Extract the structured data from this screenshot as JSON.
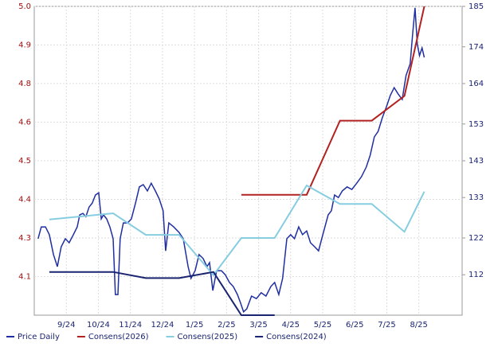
{
  "chart_data": {
    "type": "line",
    "xlim": [
      0,
      13.35
    ],
    "xticks": [
      {
        "value": 1,
        "label": "9/24"
      },
      {
        "value": 2,
        "label": "10/24"
      },
      {
        "value": 3,
        "label": "11/24"
      },
      {
        "value": 4,
        "label": "12/24"
      },
      {
        "value": 5,
        "label": "1/25"
      },
      {
        "value": 6,
        "label": "2/25"
      },
      {
        "value": 7,
        "label": "3/25"
      },
      {
        "value": 8,
        "label": "4/25"
      },
      {
        "value": 9,
        "label": "5/25"
      },
      {
        "value": 10,
        "label": "6/25"
      },
      {
        "value": 11,
        "label": "7/25"
      },
      {
        "value": 12,
        "label": "8/25"
      }
    ],
    "ylim": [
      4.0,
      5.0
    ],
    "yticks": [
      {
        "value": 4.125,
        "label": "4.1"
      },
      {
        "value": 4.25,
        "label": "4.3"
      },
      {
        "value": 4.375,
        "label": "4.4"
      },
      {
        "value": 4.5,
        "label": "4.5"
      },
      {
        "value": 4.625,
        "label": "4.6"
      },
      {
        "value": 4.75,
        "label": "4.8"
      },
      {
        "value": 4.875,
        "label": "4.9"
      },
      {
        "value": 5.0,
        "label": "5.0"
      }
    ],
    "y2lim": [
      101,
      185
    ],
    "y2ticks": [
      112,
      122,
      133,
      143,
      153,
      164,
      174,
      185
    ],
    "grid": true,
    "series": [
      {
        "name": "Price Daily",
        "color": "#1f2ea0",
        "axis": "y2",
        "x": [
          0.12,
          0.22,
          0.35,
          0.47,
          0.6,
          0.72,
          0.84,
          0.97,
          1.09,
          1.22,
          1.34,
          1.42,
          1.52,
          1.61,
          1.71,
          1.81,
          1.91,
          2.01,
          2.09,
          2.16,
          2.26,
          2.36,
          2.46,
          2.53,
          2.61,
          2.68,
          2.78,
          2.91,
          3.03,
          3.16,
          3.28,
          3.4,
          3.53,
          3.65,
          3.78,
          3.9,
          4.02,
          4.1,
          4.2,
          4.35,
          4.52,
          4.65,
          4.8,
          4.89,
          5.02,
          5.14,
          5.27,
          5.39,
          5.47,
          5.57,
          5.69,
          5.84,
          5.96,
          6.09,
          6.21,
          6.34,
          6.43,
          6.53,
          6.63,
          6.78,
          6.93,
          7.08,
          7.23,
          7.38,
          7.5,
          7.63,
          7.75,
          7.88,
          8.0,
          8.12,
          8.25,
          8.37,
          8.5,
          8.62,
          8.75,
          8.87,
          8.97,
          9.07,
          9.17,
          9.27,
          9.37,
          9.49,
          9.61,
          9.76,
          9.91,
          10.06,
          10.21,
          10.36,
          10.48,
          10.61,
          10.73,
          10.86,
          10.98,
          11.11,
          11.23,
          11.35,
          11.48,
          11.6,
          11.73,
          11.8,
          11.88,
          11.95,
          12.02,
          12.1,
          12.17
        ],
        "values": [
          121.8,
          125.0,
          125.0,
          122.9,
          117.5,
          114.2,
          119.6,
          121.8,
          120.7,
          122.9,
          125.0,
          128.3,
          128.7,
          127.8,
          130.4,
          131.5,
          133.7,
          134.3,
          127.2,
          128.3,
          127.2,
          125.0,
          121.8,
          106.6,
          106.6,
          121.8,
          126.1,
          126.1,
          127.2,
          131.5,
          135.9,
          136.5,
          134.8,
          136.9,
          134.8,
          132.6,
          129.4,
          118.5,
          126.1,
          125.0,
          123.5,
          121.8,
          114.2,
          111.0,
          113.1,
          117.5,
          116.4,
          114.2,
          115.3,
          107.7,
          113.1,
          113.1,
          112.0,
          109.9,
          108.8,
          106.6,
          104.5,
          101.9,
          102.7,
          106.2,
          105.5,
          107.1,
          106.2,
          108.8,
          109.9,
          106.6,
          111.0,
          121.8,
          122.9,
          121.8,
          125.0,
          122.9,
          123.9,
          120.7,
          119.6,
          118.5,
          121.8,
          125.0,
          128.3,
          129.4,
          133.7,
          133.0,
          134.8,
          135.9,
          135.2,
          136.9,
          138.7,
          141.3,
          144.5,
          149.5,
          151.0,
          154.7,
          157.5,
          160.8,
          162.9,
          161.2,
          159.7,
          166.2,
          169.4,
          177.0,
          184.6,
          174.8,
          171.6,
          173.7,
          171.1
        ]
      },
      {
        "name": "Consens(2026)",
        "color": "#b22222",
        "x": [
          6.46,
          8.5,
          9.54,
          10.53,
          11.55,
          12.17
        ],
        "values": [
          4.39,
          4.39,
          4.63,
          4.63,
          4.71,
          5.0
        ]
      },
      {
        "name": "Consens(2025)",
        "color": "#87cde0",
        "x": [
          0.47,
          2.46,
          3.48,
          4.52,
          5.59,
          6.46,
          7.5,
          8.5,
          9.54,
          10.53,
          11.55,
          12.17
        ],
        "values": [
          4.31,
          4.33,
          4.26,
          4.26,
          4.13,
          4.25,
          4.25,
          4.42,
          4.36,
          4.36,
          4.27,
          4.4
        ]
      },
      {
        "name": "Consens(2024)",
        "color": "#1a2470",
        "x": [
          0.47,
          2.46,
          3.48,
          4.52,
          5.59,
          6.46,
          7.5
        ],
        "values": [
          4.14,
          4.14,
          4.12,
          4.12,
          4.14,
          4.0,
          4.0
        ]
      }
    ]
  }
}
